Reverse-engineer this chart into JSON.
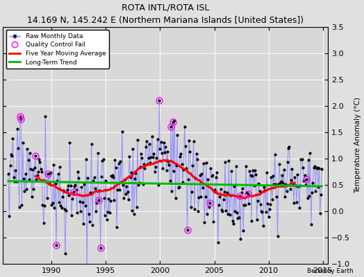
{
  "title": "ROTA INTL/ROTA ISL",
  "subtitle": "14.169 N, 145.242 E (Northern Mariana Islands [United States])",
  "ylabel": "Temperature Anomaly (°C)",
  "xlim": [
    1985.5,
    2015.5
  ],
  "ylim": [
    -1,
    3.5
  ],
  "yticks": [
    -1,
    -0.5,
    0,
    0.5,
    1,
    1.5,
    2,
    2.5,
    3,
    3.5
  ],
  "xticks": [
    1990,
    1995,
    2000,
    2005,
    2010,
    2015
  ],
  "bg_color": "#e0e0e0",
  "plot_bg_color": "#d8d8d8",
  "raw_line_color": "#8888ff",
  "raw_marker_color": "#000000",
  "qc_fail_color": "#ff00ff",
  "moving_avg_color": "#ff0000",
  "trend_color": "#00bb00",
  "watermark": "Berkeley Earth",
  "seed": 17
}
